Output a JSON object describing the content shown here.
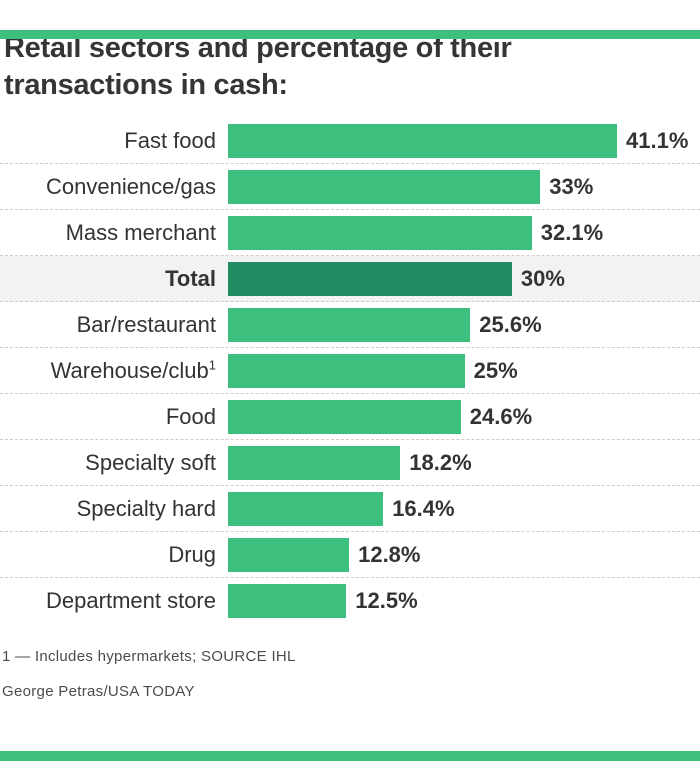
{
  "colors": {
    "accent_green": "#3dbf7d",
    "emphasis_dark_green": "#218c61",
    "row_highlight_gray": "#f2f2f2",
    "text_dark": "#333333",
    "separator_gray": "#cccccc"
  },
  "title_lines": {
    "line1": "Retail sectors and percentage of their",
    "line2": "transactions in cash:"
  },
  "footnote": "1 — Includes hypermarkets; SOURCE IHL",
  "credit": "George Petras/USA TODAY",
  "chart_data": {
    "type": "bar",
    "orientation": "horizontal",
    "title": "Retail sectors and percentage of their transactions in cash:",
    "xlabel": "",
    "ylabel": "",
    "xlim": [
      0,
      41.1
    ],
    "grid": false,
    "legend": false,
    "source": "SOURCE IHL",
    "categories": [
      "Fast food",
      "Convenience/gas",
      "Mass merchant",
      "Total",
      "Bar/restaurant",
      "Warehouse/club",
      "Food",
      "Specialty soft",
      "Specialty hard",
      "Drug",
      "Department store"
    ],
    "values": [
      41.1,
      33,
      32.1,
      30,
      25.6,
      25,
      24.6,
      18.2,
      16.4,
      12.8,
      12.5
    ],
    "rows": [
      {
        "label": "Fast food",
        "value": 41.1,
        "value_label": "41.1%",
        "emphasis": false
      },
      {
        "label": "Convenience/gas",
        "value": 33,
        "value_label": "33%",
        "emphasis": false
      },
      {
        "label": "Mass merchant",
        "value": 32.1,
        "value_label": "32.1%",
        "emphasis": false
      },
      {
        "label": "Total",
        "value": 30,
        "value_label": "30%",
        "emphasis": true
      },
      {
        "label": "Bar/restaurant",
        "value": 25.6,
        "value_label": "25.6%",
        "emphasis": false
      },
      {
        "label": "Warehouse/club",
        "value": 25,
        "value_label": "25%",
        "emphasis": false,
        "superscript": "1"
      },
      {
        "label": "Food",
        "value": 24.6,
        "value_label": "24.6%",
        "emphasis": false
      },
      {
        "label": "Specialty soft",
        "value": 18.2,
        "value_label": "18.2%",
        "emphasis": false
      },
      {
        "label": "Specialty hard",
        "value": 16.4,
        "value_label": "16.4%",
        "emphasis": false
      },
      {
        "label": "Drug",
        "value": 12.8,
        "value_label": "12.8%",
        "emphasis": false
      },
      {
        "label": "Department store",
        "value": 12.5,
        "value_label": "12.5%",
        "emphasis": false
      }
    ]
  }
}
